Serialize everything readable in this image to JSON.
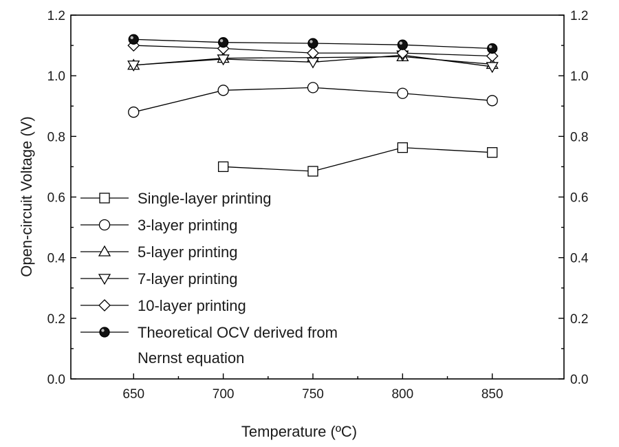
{
  "chart_data": {
    "type": "line",
    "xlabel": "Temperature (ºC)",
    "ylabel": "Open-circuit Voltage (V)",
    "xlim": [
      615,
      890
    ],
    "ylim": [
      0.0,
      1.2
    ],
    "xticks": [
      650,
      700,
      750,
      800,
      850
    ],
    "xtick_labels": [
      "650",
      "700",
      "750",
      "800",
      "850"
    ],
    "yticks": [
      0.0,
      0.2,
      0.4,
      0.6,
      0.8,
      1.0,
      1.2
    ],
    "ytick_labels": [
      "0.0",
      "0.2",
      "0.4",
      "0.6",
      "0.8",
      "1.0",
      "1.2"
    ],
    "right_axis": true,
    "grid": false,
    "legend_position": "bottom-left",
    "series": [
      {
        "name": "Single-layer printing",
        "marker": "square",
        "fill": "none",
        "x": [
          700,
          750,
          800,
          850
        ],
        "values": [
          0.7,
          0.685,
          0.763,
          0.747
        ]
      },
      {
        "name": "3-layer printing",
        "marker": "circle",
        "fill": "none",
        "x": [
          650,
          700,
          750,
          800,
          850
        ],
        "values": [
          0.88,
          0.952,
          0.961,
          0.942,
          0.918
        ]
      },
      {
        "name": "5-layer printing",
        "marker": "triangle-up",
        "fill": "none",
        "x": [
          650,
          700,
          750,
          800,
          850
        ],
        "values": [
          1.035,
          1.058,
          1.06,
          1.063,
          1.038
        ]
      },
      {
        "name": "7-layer printing",
        "marker": "triangle-down",
        "fill": "none",
        "x": [
          650,
          700,
          750,
          800,
          850
        ],
        "values": [
          1.035,
          1.055,
          1.045,
          1.068,
          1.03
        ]
      },
      {
        "name": "10-layer printing",
        "marker": "diamond",
        "fill": "none",
        "x": [
          650,
          700,
          750,
          800,
          850
        ],
        "values": [
          1.1,
          1.09,
          1.075,
          1.075,
          1.065
        ]
      },
      {
        "name": "Theoretical OCV derived from",
        "name_line2": "Nernst equation",
        "marker": "circle-filled",
        "fill": "#000000",
        "x": [
          650,
          700,
          750,
          800,
          850
        ],
        "values": [
          1.12,
          1.11,
          1.107,
          1.102,
          1.09
        ]
      }
    ]
  }
}
